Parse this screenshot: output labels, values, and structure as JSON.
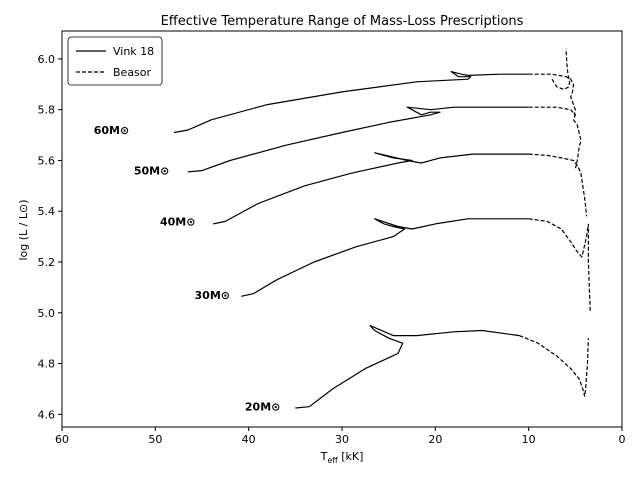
{
  "chart_data": {
    "type": "line",
    "title": "Effective Temperature Range of Mass-Loss Prescriptions",
    "xlabel": "T",
    "xlabel_sub": "eff",
    "xlabel_unit": " [kK]",
    "ylabel": "log (L / L⊙)",
    "xlim": [
      60,
      0
    ],
    "ylim": [
      4.55,
      6.11
    ],
    "xticks": [
      60,
      50,
      40,
      30,
      20,
      10,
      0
    ],
    "yticks": [
      4.6,
      4.8,
      5.0,
      5.2,
      5.4,
      5.6,
      5.8,
      6.0
    ],
    "ytick_labels": [
      "4.6",
      "4.8",
      "5.0",
      "5.2",
      "5.4",
      "5.6",
      "5.8",
      "6.0"
    ],
    "grid": false,
    "legend_position": "top-left",
    "legend": [
      {
        "label": "Vink 18",
        "style": "solid"
      },
      {
        "label": "Beasor",
        "style": "dashed"
      }
    ],
    "tracks": [
      {
        "mass_label": "60M⊙",
        "label_at": [
          52.8,
          5.72
        ],
        "solid": [
          [
            48.0,
            5.71
          ],
          [
            46.5,
            5.72
          ],
          [
            44,
            5.76
          ],
          [
            38,
            5.82
          ],
          [
            30,
            5.87
          ],
          [
            22,
            5.91
          ],
          [
            16.5,
            5.92
          ],
          [
            16.2,
            5.93
          ],
          [
            17,
            5.93
          ],
          [
            17.5,
            5.93
          ],
          [
            18.3,
            5.95
          ],
          [
            17.2,
            5.94
          ],
          [
            16.5,
            5.935
          ],
          [
            13,
            5.94
          ],
          [
            10,
            5.94
          ]
        ],
        "dashed": [
          [
            10,
            5.94
          ],
          [
            7.5,
            5.94
          ],
          [
            6,
            5.93
          ],
          [
            5.5,
            5.92
          ],
          [
            5.2,
            5.9
          ],
          [
            5.3,
            5.87
          ],
          [
            5.5,
            5.85
          ],
          [
            5.2,
            5.82
          ],
          [
            5.0,
            5.8
          ],
          [
            5.1,
            5.78
          ],
          [
            4.9,
            5.77
          ]
        ],
        "dashed2": [
          [
            7.5,
            5.92
          ],
          [
            7,
            5.89
          ],
          [
            6.2,
            5.88
          ],
          [
            5.7,
            5.89
          ],
          [
            5.6,
            5.91
          ],
          [
            5.8,
            5.94
          ],
          [
            5.9,
            5.98
          ],
          [
            6.0,
            6.04
          ]
        ]
      },
      {
        "mass_label": "50M⊙",
        "label_at": [
          48.5,
          5.56
        ],
        "solid": [
          [
            46.5,
            5.555
          ],
          [
            45,
            5.56
          ],
          [
            42,
            5.6
          ],
          [
            36,
            5.66
          ],
          [
            30,
            5.71
          ],
          [
            25,
            5.75
          ],
          [
            20.5,
            5.78
          ],
          [
            19.5,
            5.79
          ],
          [
            20.5,
            5.79
          ],
          [
            21.5,
            5.78
          ],
          [
            22.5,
            5.8
          ],
          [
            23,
            5.81
          ],
          [
            20.5,
            5.8
          ],
          [
            18,
            5.81
          ],
          [
            14,
            5.81
          ],
          [
            10,
            5.81
          ]
        ],
        "dashed": [
          [
            10,
            5.81
          ],
          [
            7,
            5.81
          ],
          [
            5.5,
            5.8
          ],
          [
            5.0,
            5.78
          ],
          [
            5.2,
            5.76
          ],
          [
            4.8,
            5.74
          ],
          [
            4.6,
            5.71
          ],
          [
            4.4,
            5.68
          ],
          [
            4.6,
            5.65
          ],
          [
            4.7,
            5.62
          ],
          [
            4.9,
            5.58
          ],
          [
            5.0,
            5.57
          ]
        ]
      },
      {
        "mass_label": "40M⊙",
        "label_at": [
          45.7,
          5.36
        ],
        "solid": [
          [
            43.8,
            5.35
          ],
          [
            42.5,
            5.36
          ],
          [
            39,
            5.43
          ],
          [
            34,
            5.5
          ],
          [
            29,
            5.55
          ],
          [
            24,
            5.59
          ],
          [
            22.5,
            5.6
          ],
          [
            24.5,
            5.61
          ],
          [
            25.5,
            5.62
          ],
          [
            26.5,
            5.63
          ],
          [
            23,
            5.6
          ],
          [
            21.5,
            5.59
          ],
          [
            19.5,
            5.61
          ],
          [
            16,
            5.625
          ],
          [
            13,
            5.625
          ],
          [
            10,
            5.625
          ]
        ],
        "dashed": [
          [
            10,
            5.625
          ],
          [
            8,
            5.62
          ],
          [
            6.5,
            5.61
          ],
          [
            5.2,
            5.6
          ],
          [
            4.7,
            5.575
          ],
          [
            4.4,
            5.55
          ],
          [
            4.2,
            5.5
          ],
          [
            4.0,
            5.45
          ],
          [
            3.9,
            5.42
          ],
          [
            3.8,
            5.38
          ]
        ]
      },
      {
        "mass_label": "30M⊙",
        "label_at": [
          42.0,
          5.07
        ],
        "solid": [
          [
            40.8,
            5.065
          ],
          [
            39.5,
            5.075
          ],
          [
            37,
            5.13
          ],
          [
            33,
            5.2
          ],
          [
            28.5,
            5.26
          ],
          [
            24.5,
            5.3
          ],
          [
            23.3,
            5.33
          ],
          [
            24.5,
            5.34
          ],
          [
            25.5,
            5.35
          ],
          [
            26.5,
            5.37
          ],
          [
            24,
            5.34
          ],
          [
            22.5,
            5.33
          ],
          [
            20,
            5.35
          ],
          [
            16.5,
            5.37
          ],
          [
            13,
            5.37
          ],
          [
            10,
            5.37
          ]
        ],
        "dashed": [
          [
            10,
            5.37
          ],
          [
            8,
            5.36
          ],
          [
            6.5,
            5.33
          ],
          [
            5.5,
            5.28
          ],
          [
            4.8,
            5.24
          ],
          [
            4.3,
            5.22
          ],
          [
            4.1,
            5.25
          ],
          [
            3.8,
            5.3
          ],
          [
            3.6,
            5.35
          ],
          [
            3.6,
            5.2
          ],
          [
            3.5,
            5.1
          ],
          [
            3.4,
            5.0
          ]
        ]
      },
      {
        "mass_label": "20M⊙",
        "label_at": [
          36.6,
          4.63
        ],
        "solid": [
          [
            35.0,
            4.625
          ],
          [
            33.5,
            4.63
          ],
          [
            31,
            4.7
          ],
          [
            27.5,
            4.78
          ],
          [
            24,
            4.84
          ],
          [
            23.5,
            4.88
          ],
          [
            25,
            4.9
          ],
          [
            26.5,
            4.93
          ],
          [
            27,
            4.95
          ],
          [
            24.5,
            4.91
          ],
          [
            22,
            4.91
          ],
          [
            18,
            4.925
          ],
          [
            15,
            4.93
          ],
          [
            11,
            4.91
          ]
        ],
        "dashed": [
          [
            11,
            4.91
          ],
          [
            9,
            4.88
          ],
          [
            7,
            4.83
          ],
          [
            5.5,
            4.78
          ],
          [
            4.6,
            4.74
          ],
          [
            4.2,
            4.7
          ],
          [
            4.0,
            4.67
          ],
          [
            3.9,
            4.7
          ],
          [
            3.8,
            4.75
          ],
          [
            3.7,
            4.8
          ],
          [
            3.6,
            4.9
          ]
        ]
      }
    ]
  }
}
